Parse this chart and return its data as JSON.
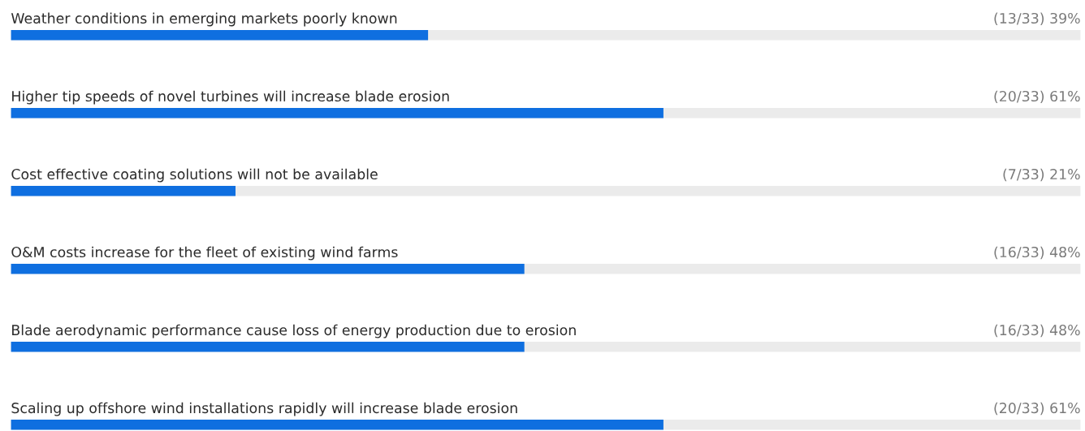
{
  "chart_data": {
    "type": "bar",
    "orientation": "horizontal",
    "xlim": [
      0,
      100
    ],
    "categories": [
      "Weather conditions in emerging markets poorly known",
      "Higher tip speeds of novel turbines will increase blade erosion",
      "Cost effective coating solutions will not be available",
      "O&M costs increase for the fleet of existing wind farms",
      "Blade aerodynamic performance cause loss of energy production due to erosion",
      "Scaling up offshore wind installations rapidly will increase blade erosion"
    ],
    "series": [
      {
        "color": "#0f6fe0",
        "values": [
          39,
          61,
          21,
          48,
          48,
          61
        ],
        "value_labels": [
          "(13/33) 39%",
          "(20/33) 61%",
          "(7/33) 21%",
          "(16/33) 48%",
          "(16/33) 48%",
          "(20/33) 61%"
        ]
      }
    ]
  }
}
